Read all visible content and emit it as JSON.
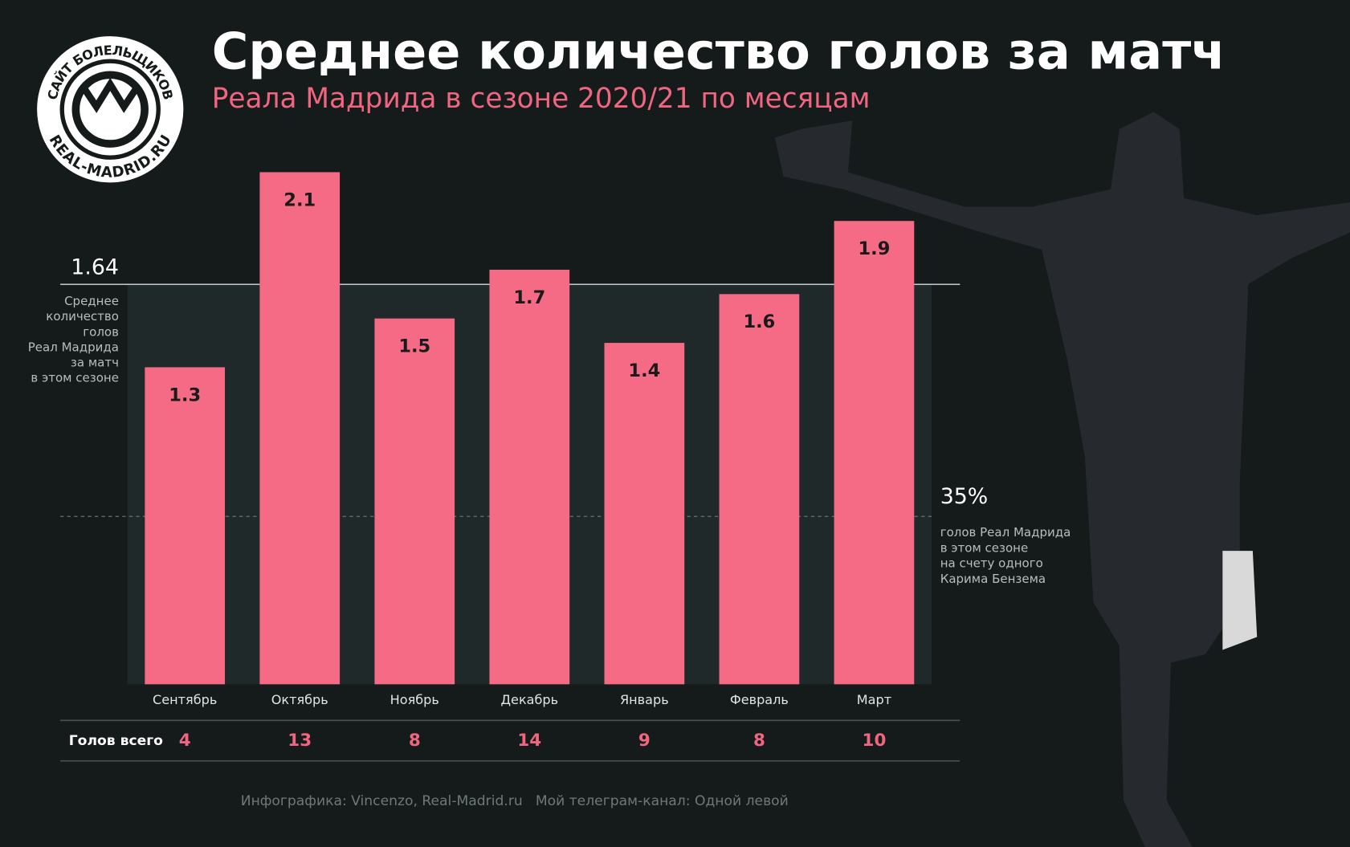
{
  "logo": {
    "top_text": "САЙТ БОЛЕЛЬЩИКОВ",
    "bottom_text": "REAL-MADRID.RU"
  },
  "chart_data": {
    "type": "bar",
    "title": "Среднее количество голов за матч",
    "subtitle": "Реала Мадрида в сезоне 2020/21 по месяцам",
    "categories": [
      "Сентябрь",
      "Октябрь",
      "Ноябрь",
      "Декабрь",
      "Январь",
      "Февраль",
      "Март"
    ],
    "values": [
      1.3,
      2.1,
      1.5,
      1.7,
      1.4,
      1.6,
      1.9
    ],
    "color": "#f56b86",
    "ylim": [
      0,
      2.1
    ],
    "reference_line": {
      "value": 1.64,
      "lines": [
        "Среднее",
        "количество",
        "голов",
        "Реал Мадрида",
        "за матч",
        "в этом сезоне"
      ]
    },
    "annotation": {
      "label": "35%",
      "lines": [
        "голов Реал Мадрида",
        "в этом сезоне",
        "на счету одного",
        "Карима Бензема"
      ]
    },
    "totals": {
      "label": "Голов всего",
      "values": [
        4,
        13,
        8,
        14,
        9,
        8,
        10
      ]
    }
  },
  "footer": [
    "Инфографика: Vincenzo, Real-Madrid.ru",
    "Мой телеграм-канал: Одной левой"
  ]
}
